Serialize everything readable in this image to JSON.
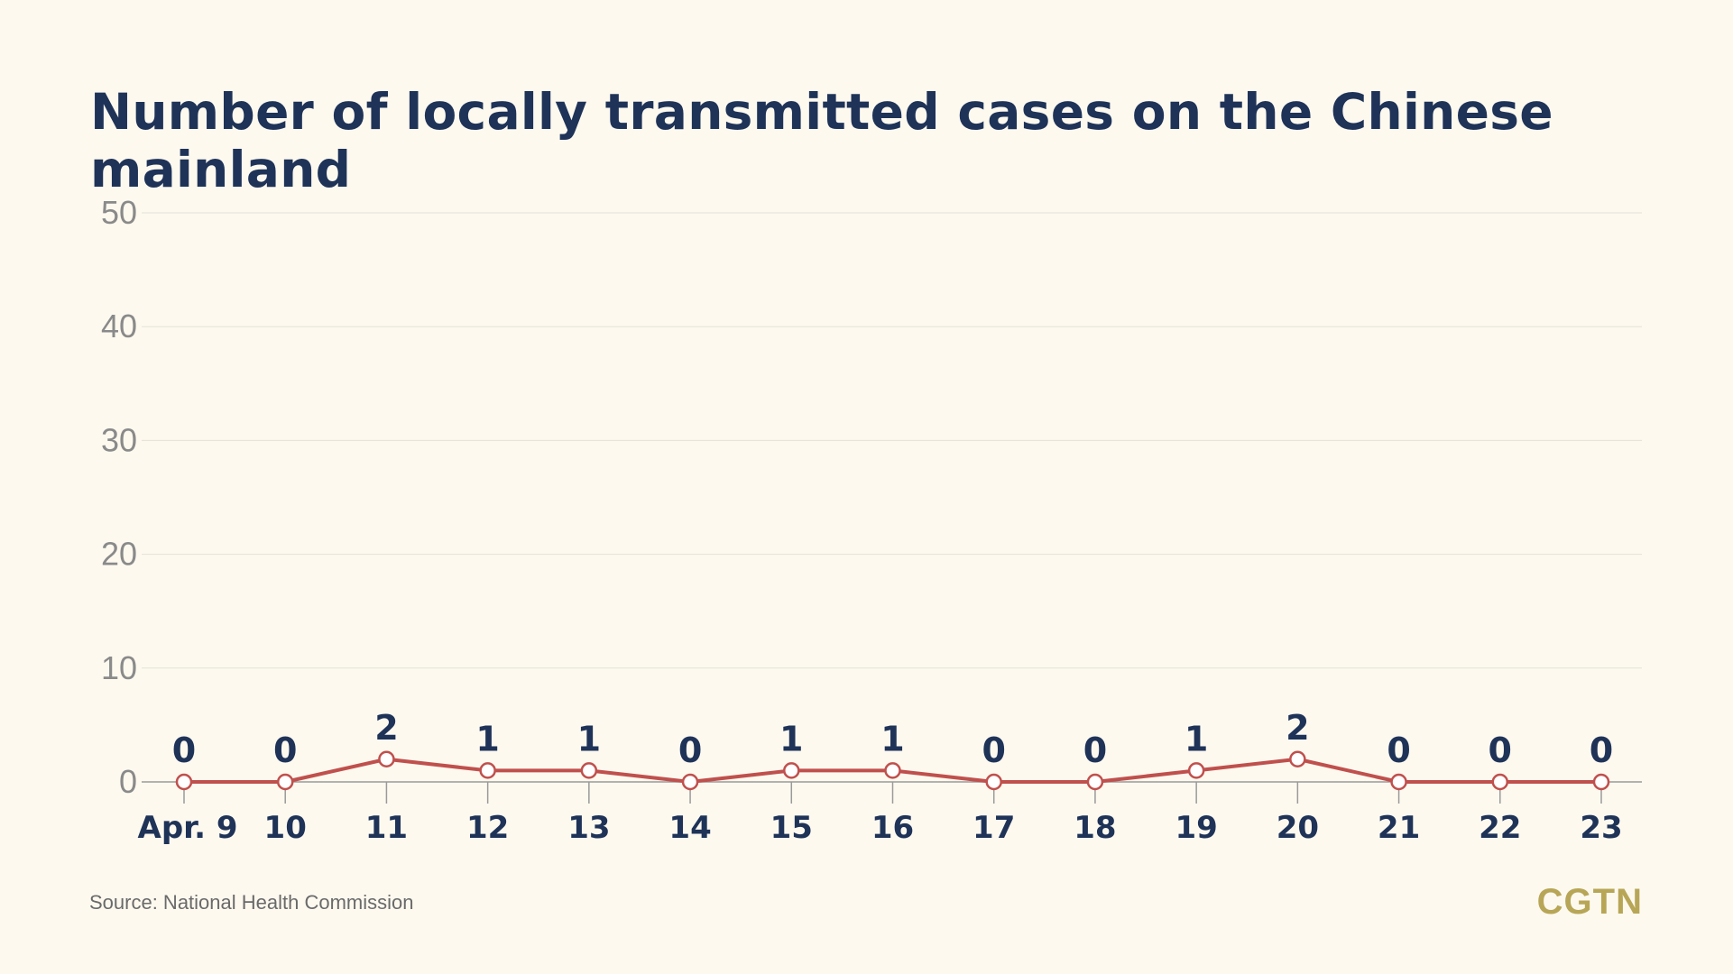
{
  "chart_data": {
    "type": "line",
    "title": "Number of locally transmitted cases on the Chinese mainland",
    "categories": [
      "Apr. 9",
      "10",
      "11",
      "12",
      "13",
      "14",
      "15",
      "16",
      "17",
      "18",
      "19",
      "20",
      "21",
      "22",
      "23"
    ],
    "values": [
      0,
      0,
      2,
      1,
      1,
      0,
      1,
      1,
      0,
      0,
      1,
      2,
      0,
      0,
      0
    ],
    "y_ticks": [
      "0",
      "10",
      "20",
      "30",
      "40",
      "50"
    ],
    "ylim": [
      0,
      50
    ],
    "grid": true,
    "colors": {
      "line": "#c0504d",
      "marker_fill": "#ffffff",
      "data_label": "#1f3358",
      "tick_label": "#8a8a8a",
      "gridline": "#e4e1d8",
      "axis": "#9a9a9a"
    }
  },
  "footer": {
    "source": "Source: National Health Commission",
    "logo": "CGTN"
  }
}
